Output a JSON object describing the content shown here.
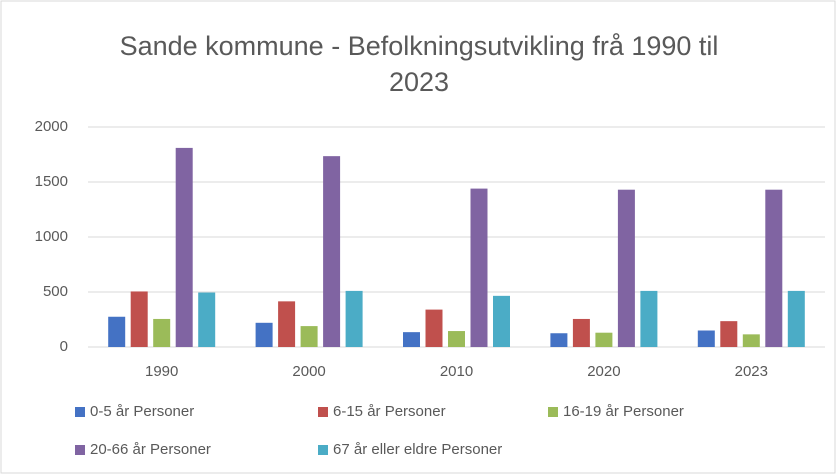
{
  "chart_data": {
    "type": "bar",
    "title": "Sande kommune - Befolkningsutvikling frå 1990 til 2023",
    "categories": [
      "1990",
      "2000",
      "2010",
      "2020",
      "2023"
    ],
    "series": [
      {
        "name": "0-5 år Personer",
        "color": "#4472c4",
        "values": [
          275,
          220,
          135,
          125,
          150
        ]
      },
      {
        "name": "6-15 år Personer",
        "color": "#c0504d",
        "values": [
          505,
          415,
          340,
          255,
          235
        ]
      },
      {
        "name": "16-19 år Personer",
        "color": "#9bbb59",
        "values": [
          255,
          190,
          145,
          130,
          115
        ]
      },
      {
        "name": "20-66 år Personer",
        "color": "#8064a2",
        "values": [
          1810,
          1735,
          1440,
          1430,
          1430
        ]
      },
      {
        "name": "67 år eller eldre Personer",
        "color": "#4bacc6",
        "values": [
          495,
          510,
          465,
          510,
          510
        ]
      }
    ],
    "ylim": [
      0,
      2000
    ],
    "yticks": [
      0,
      500,
      1000,
      1500,
      2000
    ],
    "grid": true,
    "legend": "bottom"
  }
}
